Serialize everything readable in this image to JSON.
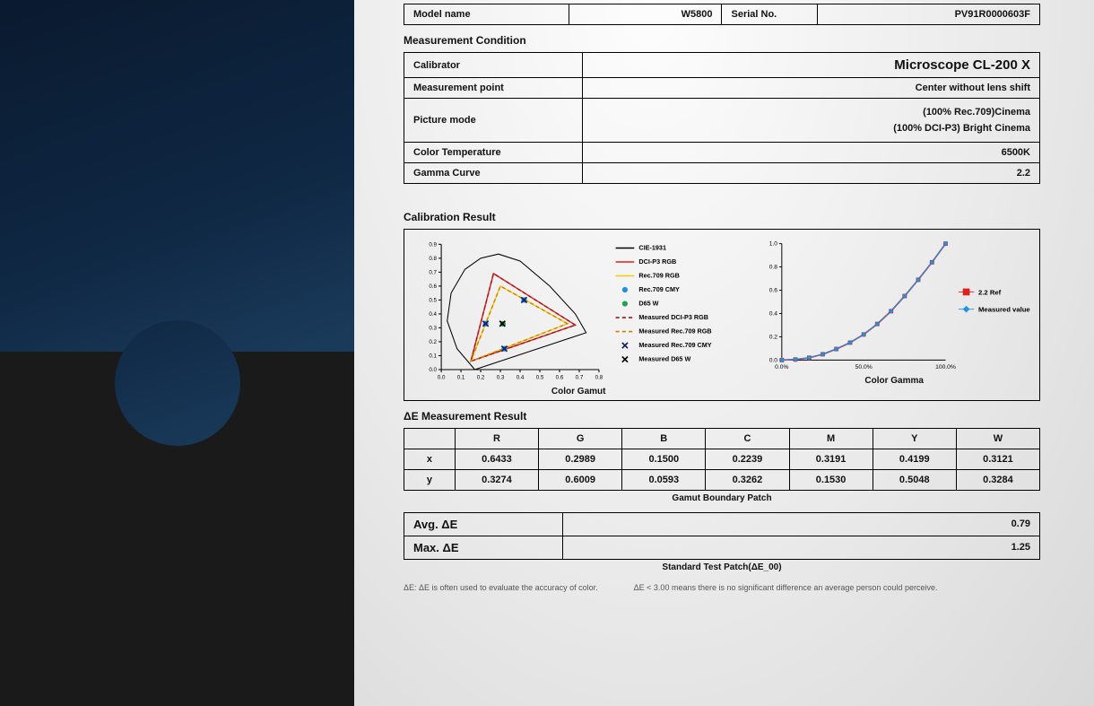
{
  "header": {
    "model_label": "Model name",
    "model_value": "W5800",
    "serial_label": "Serial No.",
    "serial_value": "PV91R0000603F"
  },
  "cond_title": "Measurement Condition",
  "cond": {
    "calibrator_label": "Calibrator",
    "calibrator_value": "Microscope CL-200 X",
    "mpoint_label": "Measurement point",
    "mpoint_value": "Center without lens shift",
    "pmode_label": "Picture mode",
    "pmode_line1": "(100% Rec.709)Cinema",
    "pmode_line2": "(100% DCI-P3)  Bright Cinema",
    "ctemp_label": "Color Temperature",
    "ctemp_value": "6500K",
    "gamma_label": "Gamma Curve",
    "gamma_value": "2.2"
  },
  "calres_title": "Calibration Result",
  "gamut": {
    "caption": "Color Gamut",
    "xlim": [
      0.0,
      0.8
    ],
    "ylim": [
      0.0,
      0.9
    ],
    "xticks": [
      "0.0",
      "0.1",
      "0.2",
      "0.3",
      "0.4",
      "0.5",
      "0.6",
      "0.7",
      "0.8"
    ],
    "yticks": [
      "0.0",
      "0.1",
      "0.2",
      "0.3",
      "0.4",
      "0.5",
      "0.6",
      "0.7",
      "0.8",
      "0.9"
    ],
    "cie_color": "#000000",
    "dcip3_color": "#e02020",
    "rec709_color": "#f0d000",
    "rec709cmy_color": "#2090e0",
    "d65_color": "#20a050",
    "meas_dcip3_color": "#a01818",
    "meas_rec709_color": "#d08000",
    "meas_rec709cmy_color": "#102060",
    "meas_d65_color": "#000000",
    "dcip3_tri": [
      [
        0.68,
        0.32
      ],
      [
        0.265,
        0.69
      ],
      [
        0.15,
        0.06
      ]
    ],
    "rec709_tri": [
      [
        0.64,
        0.33
      ],
      [
        0.3,
        0.6
      ],
      [
        0.15,
        0.06
      ]
    ],
    "cmy_pts": [
      [
        0.225,
        0.33
      ],
      [
        0.42,
        0.5
      ],
      [
        0.32,
        0.15
      ]
    ],
    "d65_pt": [
      0.3127,
      0.329
    ],
    "meas_cmy_pts": [
      [
        0.225,
        0.33
      ],
      [
        0.42,
        0.5
      ],
      [
        0.32,
        0.15
      ]
    ],
    "meas_d65_pt": [
      0.31,
      0.33
    ],
    "legend": [
      {
        "label": "CIE-1931",
        "type": "line",
        "color": "#000000"
      },
      {
        "label": "DCI-P3 RGB",
        "type": "line",
        "color": "#e02020"
      },
      {
        "label": "Rec.709 RGB",
        "type": "line",
        "color": "#f0d000"
      },
      {
        "label": "Rec.709 CMY",
        "type": "dot",
        "color": "#2090e0"
      },
      {
        "label": "D65 W",
        "type": "dot",
        "color": "#20a050"
      },
      {
        "label": "Measured DCI-P3 RGB",
        "type": "dash",
        "color": "#a01818"
      },
      {
        "label": "Measured Rec.709 RGB",
        "type": "dash",
        "color": "#d08000"
      },
      {
        "label": "Measured Rec.709 CMY",
        "type": "x",
        "color": "#102060"
      },
      {
        "label": "Measured D65 W",
        "type": "x",
        "color": "#000000"
      }
    ]
  },
  "gamma": {
    "caption": "Color Gamma",
    "xticks": [
      "0.0%",
      "50.0%",
      "100.0%"
    ],
    "yticks": [
      "0.0",
      "0.2",
      "0.4",
      "0.6",
      "0.8",
      "1.0"
    ],
    "ref_label": "2.2 Ref",
    "meas_label": "Measured value",
    "ref_color": "#e02020",
    "meas_color": "#2090e0",
    "points": [
      [
        0.0,
        0.0
      ],
      [
        0.083,
        0.005
      ],
      [
        0.167,
        0.02
      ],
      [
        0.25,
        0.05
      ],
      [
        0.333,
        0.095
      ],
      [
        0.417,
        0.15
      ],
      [
        0.5,
        0.22
      ],
      [
        0.583,
        0.31
      ],
      [
        0.667,
        0.42
      ],
      [
        0.75,
        0.55
      ],
      [
        0.833,
        0.69
      ],
      [
        0.917,
        0.84
      ],
      [
        1.0,
        1.0
      ]
    ]
  },
  "de_title": "ΔE Measurement Result",
  "de_table": {
    "cols": [
      "",
      "R",
      "G",
      "B",
      "C",
      "M",
      "Y",
      "W"
    ],
    "rows": [
      [
        "x",
        "0.6433",
        "0.2989",
        "0.1500",
        "0.2239",
        "0.3191",
        "0.4199",
        "0.3121"
      ],
      [
        "y",
        "0.3274",
        "0.6009",
        "0.0593",
        "0.3262",
        "0.1530",
        "0.5048",
        "0.3284"
      ]
    ],
    "caption": "Gamut Boundary Patch"
  },
  "summary": {
    "avg_label": "Avg. ΔE",
    "avg_value": "0.79",
    "max_label": "Max. ΔE",
    "max_value": "1.25",
    "caption": "Standard Test Patch(ΔE_00)"
  },
  "foot1": "ΔE: ΔE is often used to evaluate the accuracy of color.",
  "foot2": "ΔE < 3.00 means there is no significant difference an average person could perceive."
}
